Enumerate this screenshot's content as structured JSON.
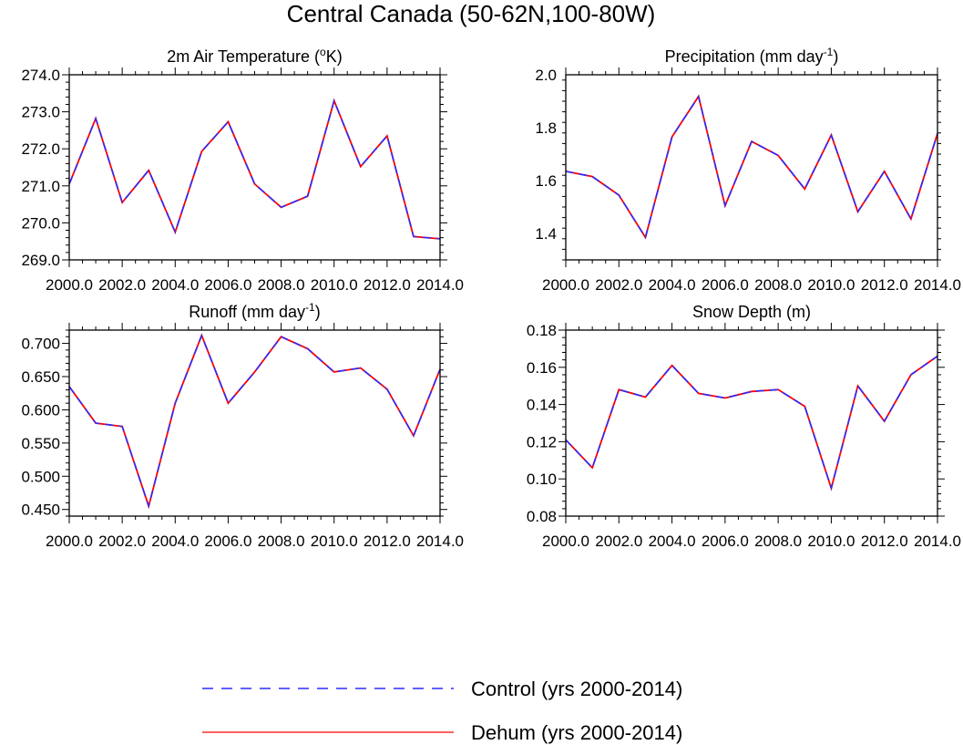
{
  "title": "Central Canada (50-62N,100-80W)",
  "legend": {
    "control_label": "Control (yrs 2000-2014)",
    "dehum_label": "Dehum (yrs 2000-2014)",
    "control_color": "#2b2bff",
    "dehum_color": "#ff0000"
  },
  "chart_data": [
    {
      "type": "line",
      "title": "2m Air Temperature (oK)",
      "title_parts": {
        "pre": "2m Air Temperature (",
        "sup": "o",
        "post": "K)"
      },
      "x": [
        2000,
        2001,
        2002,
        2003,
        2004,
        2005,
        2006,
        2007,
        2008,
        2009,
        2010,
        2011,
        2012,
        2013,
        2014
      ],
      "xlim": [
        2000,
        2014
      ],
      "ylim": [
        269.0,
        274.0
      ],
      "xticks": [
        2000,
        2002,
        2004,
        2006,
        2008,
        2010,
        2012,
        2014
      ],
      "xtick_labels": [
        "2000.0",
        "2002.0",
        "2004.0",
        "2006.0",
        "2008.0",
        "2010.0",
        "2012.0",
        "2014.0"
      ],
      "yticks": [
        269.0,
        270.0,
        271.0,
        272.0,
        273.0,
        274.0
      ],
      "ytick_labels": [
        "269.0",
        "270.0",
        "271.0",
        "272.0",
        "273.0",
        "274.0"
      ],
      "series": [
        {
          "name": "Control (yrs 2000-2014)",
          "values": [
            271.05,
            272.82,
            270.55,
            271.42,
            269.75,
            271.93,
            272.73,
            271.05,
            270.42,
            270.72,
            273.3,
            271.52,
            272.35,
            269.63,
            269.57
          ]
        },
        {
          "name": "Dehum (yrs 2000-2014)",
          "values": [
            271.05,
            272.82,
            270.55,
            271.42,
            269.75,
            271.93,
            272.73,
            271.05,
            270.42,
            270.72,
            273.3,
            271.52,
            272.35,
            269.63,
            269.57
          ]
        }
      ]
    },
    {
      "type": "line",
      "title": "Precipitation (mm day-1)",
      "title_parts": {
        "pre": "Precipitation (mm day",
        "sup": "-1",
        "post": ")"
      },
      "x": [
        2000,
        2001,
        2002,
        2003,
        2004,
        2005,
        2006,
        2007,
        2008,
        2009,
        2010,
        2011,
        2012,
        2013,
        2014
      ],
      "xlim": [
        2000,
        2014
      ],
      "ylim": [
        1.3,
        2.0
      ],
      "xticks": [
        2000,
        2002,
        2004,
        2006,
        2008,
        2010,
        2012,
        2014
      ],
      "xtick_labels": [
        "2000.0",
        "2002.0",
        "2004.0",
        "2006.0",
        "2008.0",
        "2010.0",
        "2012.0",
        "2014.0"
      ],
      "yticks": [
        1.4,
        1.6,
        1.8,
        2.0
      ],
      "ytick_labels": [
        "1.4",
        "1.6",
        "1.8",
        "2.0"
      ],
      "series": [
        {
          "name": "Control (yrs 2000-2014)",
          "values": [
            1.635,
            1.615,
            1.545,
            1.385,
            1.765,
            1.918,
            1.505,
            1.748,
            1.695,
            1.568,
            1.772,
            1.482,
            1.635,
            1.455,
            1.778
          ]
        },
        {
          "name": "Dehum (yrs 2000-2014)",
          "values": [
            1.635,
            1.615,
            1.545,
            1.385,
            1.765,
            1.918,
            1.505,
            1.748,
            1.695,
            1.568,
            1.772,
            1.482,
            1.635,
            1.455,
            1.778
          ]
        }
      ]
    },
    {
      "type": "line",
      "title": "Runoff (mm day-1)",
      "title_parts": {
        "pre": "Runoff (mm day",
        "sup": "-1",
        "post": ")"
      },
      "x": [
        2000,
        2001,
        2002,
        2003,
        2004,
        2005,
        2006,
        2007,
        2008,
        2009,
        2010,
        2011,
        2012,
        2013,
        2014
      ],
      "xlim": [
        2000,
        2014
      ],
      "ylim": [
        0.44,
        0.72
      ],
      "xticks": [
        2000,
        2002,
        2004,
        2006,
        2008,
        2010,
        2012,
        2014
      ],
      "xtick_labels": [
        "2000.0",
        "2002.0",
        "2004.0",
        "2006.0",
        "2008.0",
        "2010.0",
        "2012.0",
        "2014.0"
      ],
      "yticks": [
        0.45,
        0.5,
        0.55,
        0.6,
        0.65,
        0.7
      ],
      "ytick_labels": [
        "0.450",
        "0.500",
        "0.550",
        "0.600",
        "0.650",
        "0.700"
      ],
      "series": [
        {
          "name": "Control (yrs 2000-2014)",
          "values": [
            0.635,
            0.58,
            0.575,
            0.455,
            0.61,
            0.712,
            0.61,
            0.657,
            0.71,
            0.692,
            0.657,
            0.663,
            0.631,
            0.561,
            0.661
          ]
        },
        {
          "name": "Dehum (yrs 2000-2014)",
          "values": [
            0.635,
            0.58,
            0.575,
            0.455,
            0.61,
            0.712,
            0.61,
            0.657,
            0.71,
            0.692,
            0.657,
            0.663,
            0.631,
            0.561,
            0.661
          ]
        }
      ]
    },
    {
      "type": "line",
      "title": "Snow Depth (m)",
      "title_parts": {
        "pre": "Snow Depth (m)",
        "sup": "",
        "post": ""
      },
      "x": [
        2000,
        2001,
        2002,
        2003,
        2004,
        2005,
        2006,
        2007,
        2008,
        2009,
        2010,
        2011,
        2012,
        2013,
        2014
      ],
      "xlim": [
        2000,
        2014
      ],
      "ylim": [
        0.08,
        0.18
      ],
      "xticks": [
        2000,
        2002,
        2004,
        2006,
        2008,
        2010,
        2012,
        2014
      ],
      "xtick_labels": [
        "2000.0",
        "2002.0",
        "2004.0",
        "2006.0",
        "2008.0",
        "2010.0",
        "2012.0",
        "2014.0"
      ],
      "yticks": [
        0.08,
        0.1,
        0.12,
        0.14,
        0.16,
        0.18
      ],
      "ytick_labels": [
        "0.08",
        "0.10",
        "0.12",
        "0.14",
        "0.16",
        "0.18"
      ],
      "series": [
        {
          "name": "Control (yrs 2000-2014)",
          "values": [
            0.121,
            0.106,
            0.148,
            0.144,
            0.161,
            0.146,
            0.1435,
            0.147,
            0.148,
            0.139,
            0.095,
            0.15,
            0.131,
            0.156,
            0.166
          ]
        },
        {
          "name": "Dehum (yrs 2000-2014)",
          "values": [
            0.121,
            0.106,
            0.148,
            0.144,
            0.161,
            0.146,
            0.1435,
            0.147,
            0.148,
            0.139,
            0.095,
            0.15,
            0.131,
            0.156,
            0.166
          ]
        }
      ]
    }
  ]
}
